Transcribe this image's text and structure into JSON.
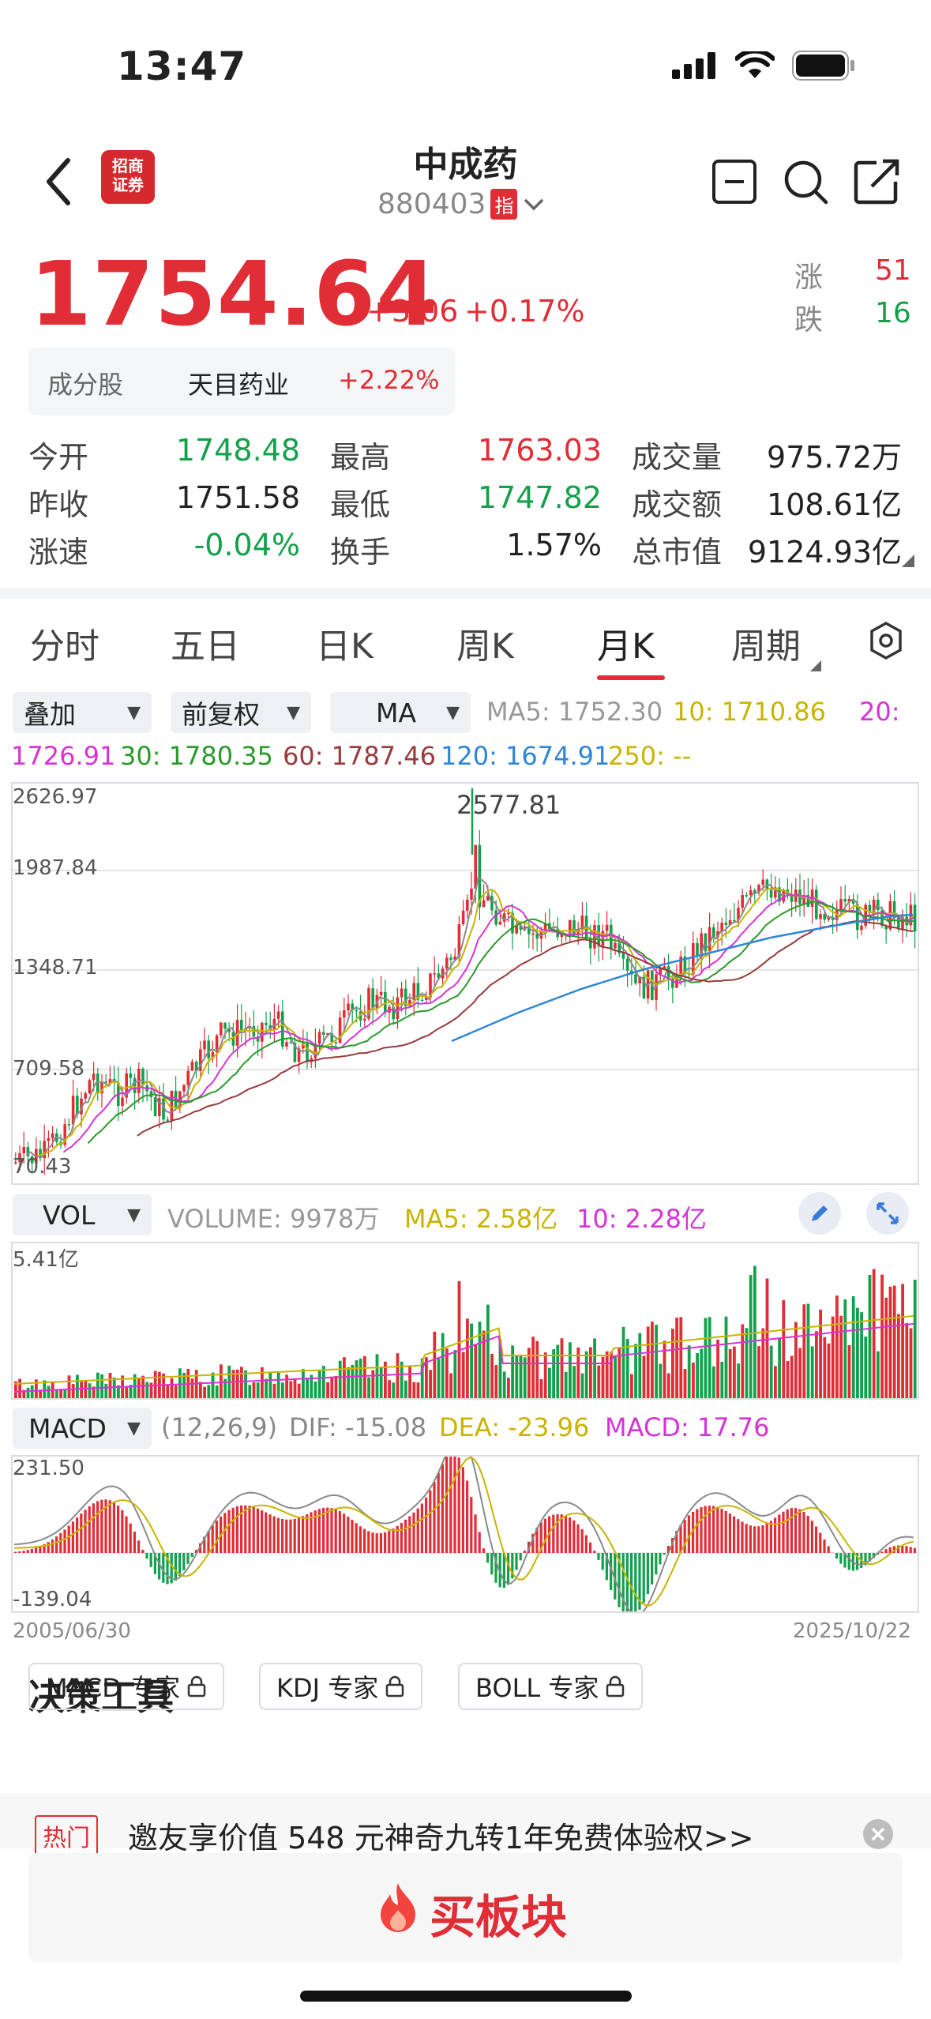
{
  "status_bar": {
    "time": "13:47"
  },
  "header": {
    "logo_text_line1": "招商",
    "logo_text_line2": "证券",
    "title": "中成药",
    "code": "880403",
    "code_badge": "指"
  },
  "quote": {
    "price": "1754.64",
    "change": "+3.06",
    "change_pct": "+0.17%",
    "up_label": "涨",
    "up_count": "51",
    "down_label": "跌",
    "down_count": "16"
  },
  "component": {
    "label": "成分股",
    "stock_name": "天目药业",
    "stock_pct": "+2.22%"
  },
  "stats": [
    {
      "label": "今开",
      "value": "1748.48",
      "color": "green"
    },
    {
      "label": "最高",
      "value": "1763.03",
      "color": "red"
    },
    {
      "label": "成交量",
      "value": "975.72万",
      "color": "black"
    },
    {
      "label": "昨收",
      "value": "1751.58",
      "color": "black"
    },
    {
      "label": "最低",
      "value": "1747.82",
      "color": "green"
    },
    {
      "label": "成交额",
      "value": "108.61亿",
      "color": "black"
    },
    {
      "label": "涨速",
      "value": "-0.04%",
      "color": "green"
    },
    {
      "label": "换手",
      "value": "1.57%",
      "color": "black"
    },
    {
      "label": "总市值",
      "value": "9124.93亿",
      "color": "black"
    }
  ],
  "tabs": [
    "分时",
    "五日",
    "日K",
    "周K",
    "月K",
    "周期"
  ],
  "active_tab": "月K",
  "controls": {
    "overlay": "叠加",
    "adjust": "前复权",
    "indicator": "MA"
  },
  "ma_values": {
    "ma5": "MA5: 1752.30",
    "ma10": "10: 1710.86",
    "ma20_label": "20:",
    "ma20_value": "1726.91",
    "ma30": "30: 1780.35",
    "ma60": "60: 1787.46",
    "ma120": "120: 1674.91",
    "ma250": "250: --"
  },
  "kline": {
    "y_labels": [
      "2626.97",
      "1987.84",
      "1348.71",
      "709.58",
      "70.43"
    ],
    "peak_label": "2577.81"
  },
  "volume": {
    "selector": "VOL",
    "volume_text": "VOLUME: 9978万",
    "ma5": "MA5: 2.58亿",
    "ma10": "10: 2.28亿",
    "y_max": "5.41亿"
  },
  "macd": {
    "selector": "MACD",
    "params": "(12,26,9)",
    "dif": "DIF: -15.08",
    "dea": "DEA: -23.96",
    "macd": "MACD: 17.76",
    "y_max": "231.50",
    "y_min": "-139.04",
    "date_start": "2005/06/30",
    "date_end": "2025/10/22"
  },
  "tools": {
    "section_title": "决策工具",
    "buttons": [
      "MACD 专家",
      "KDJ 专家",
      "BOLL 专家"
    ]
  },
  "promo": {
    "tag": "热门",
    "text": "邀友享价值 548 元神奇九转1年免费体验权>>"
  },
  "cta": {
    "label": "买板块"
  },
  "colors": {
    "red": "#e02d36",
    "green": "#14a04a",
    "ma5": "#8a8a8a",
    "ma10": "#c8b400",
    "ma20": "#d633d6",
    "ma30": "#2a9a2a",
    "ma60": "#9a3a3a",
    "ma120": "#2f86d6",
    "ma250": "#c8b400"
  }
}
